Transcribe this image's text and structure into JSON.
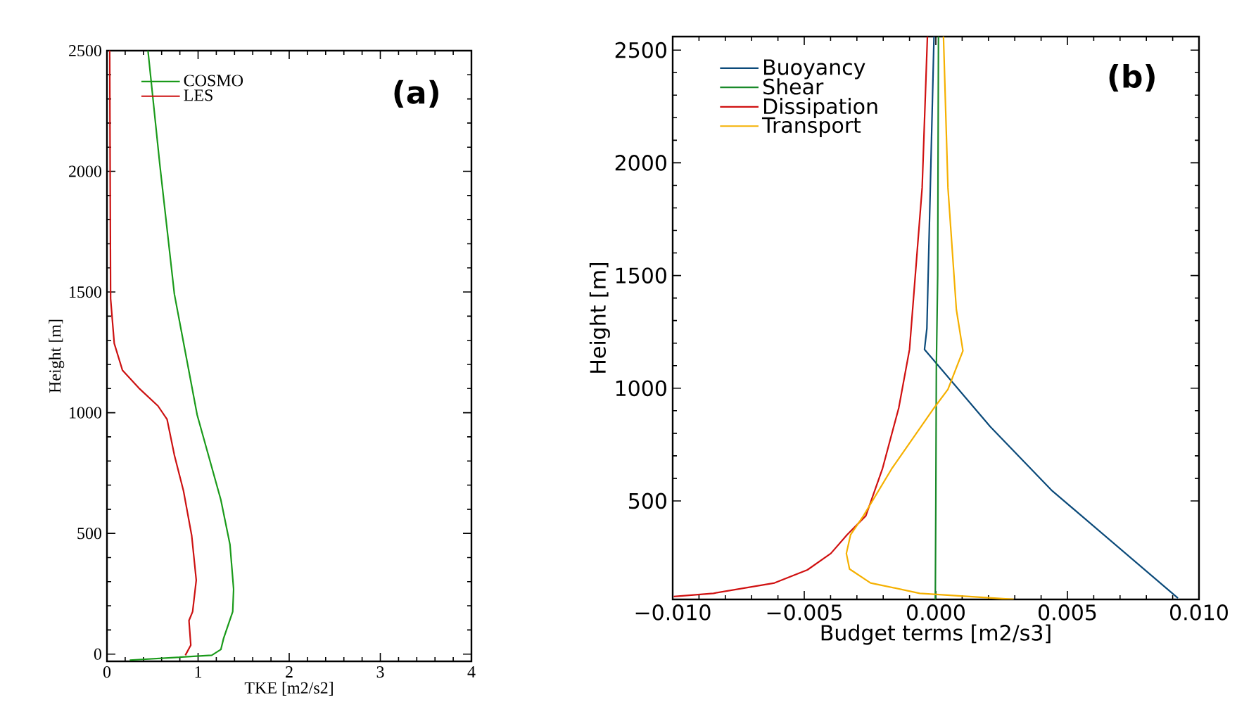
{
  "chart_data": [
    {
      "type": "line",
      "xlabel": "TKE [m2/s2]",
      "ylabel": "Height [m]",
      "xlim": [
        0,
        4
      ],
      "xticks": [
        0,
        1,
        2,
        3,
        4
      ],
      "ylim": [
        -30,
        2500
      ],
      "yticks": [
        0,
        500,
        1000,
        1500,
        2000,
        2500
      ],
      "legend": "top left",
      "annotations": [
        "(a)"
      ],
      "series": [
        {
          "name": "COSMO",
          "color": "#1a9a1a",
          "x": [
            0.45,
            0.58,
            0.74,
            0.99,
            1.25,
            1.35,
            1.39,
            1.38,
            1.28,
            1.25,
            1.15,
            0.25
          ],
          "values": [
            2500,
            2028,
            1491,
            991,
            639,
            454,
            269,
            176,
            65,
            19,
            -5,
            -25
          ]
        },
        {
          "name": "LES",
          "color": "#cc1111",
          "x": [
            0.03,
            0.04,
            0.08,
            0.17,
            0.35,
            0.56,
            0.66,
            0.74,
            0.84,
            0.93,
            0.98,
            0.94,
            0.9,
            0.92,
            0.86
          ],
          "values": [
            2500,
            1472,
            1287,
            1176,
            1102,
            1028,
            972,
            824,
            676,
            491,
            306,
            176,
            139,
            37,
            -5
          ]
        }
      ]
    },
    {
      "type": "line",
      "xlabel": "Budget terms [m2/s3]",
      "ylabel": "Height [m]",
      "xlim": [
        -0.01,
        0.01
      ],
      "xticks": [
        {
          "value": -0.01,
          "label": "−0.010"
        },
        {
          "value": -0.005,
          "label": "−0.005"
        },
        {
          "value": 0,
          "label": "0.000"
        },
        {
          "value": 0.005,
          "label": "0.005"
        },
        {
          "value": 0.01,
          "label": "0.010"
        }
      ],
      "ylim": [
        63,
        2560
      ],
      "yticks": [
        500,
        1000,
        1500,
        2000,
        2500
      ],
      "legend": "top left",
      "annotations": [
        "(b)"
      ],
      "series": [
        {
          "name": "Buoyancy",
          "color": "#0b4a7a",
          "x": [
            -7e-05,
            -0.00034,
            -0.00043,
            0.00207,
            0.00439,
            0.0092
          ],
          "values": [
            2560,
            1266,
            1172,
            829,
            548,
            69
          ]
        },
        {
          "name": "Shear",
          "color": "#1a8a2a",
          "x": [
            0.0001,
            7e-05,
            2e-05,
            0.0,
            -2e-05
          ],
          "values": [
            2560,
            1500,
            1100,
            500,
            63
          ]
        },
        {
          "name": "Dissipation",
          "color": "#d01010",
          "x": [
            -0.00032,
            -0.00052,
            -0.001,
            -0.00141,
            -0.00203,
            -0.00266,
            -0.00337,
            -0.00399,
            -0.00488,
            -0.00613,
            -0.00845,
            -0.00996
          ],
          "values": [
            2560,
            1890,
            1172,
            912,
            642,
            434,
            350,
            267,
            194,
            136,
            90,
            76
          ]
        },
        {
          "name": "Transport",
          "color": "#f5b000",
          "x": [
            0.00029,
            0.00046,
            0.00078,
            0.00103,
            0.00046,
            -7e-05,
            -0.00168,
            -0.00275,
            -0.00324,
            -0.0034,
            -0.00328,
            -0.00248,
            -0.00061,
            0.00296
          ],
          "values": [
            2560,
            1890,
            1349,
            1166,
            995,
            912,
            642,
            434,
            350,
            267,
            198,
            136,
            90,
            63
          ]
        }
      ]
    }
  ]
}
